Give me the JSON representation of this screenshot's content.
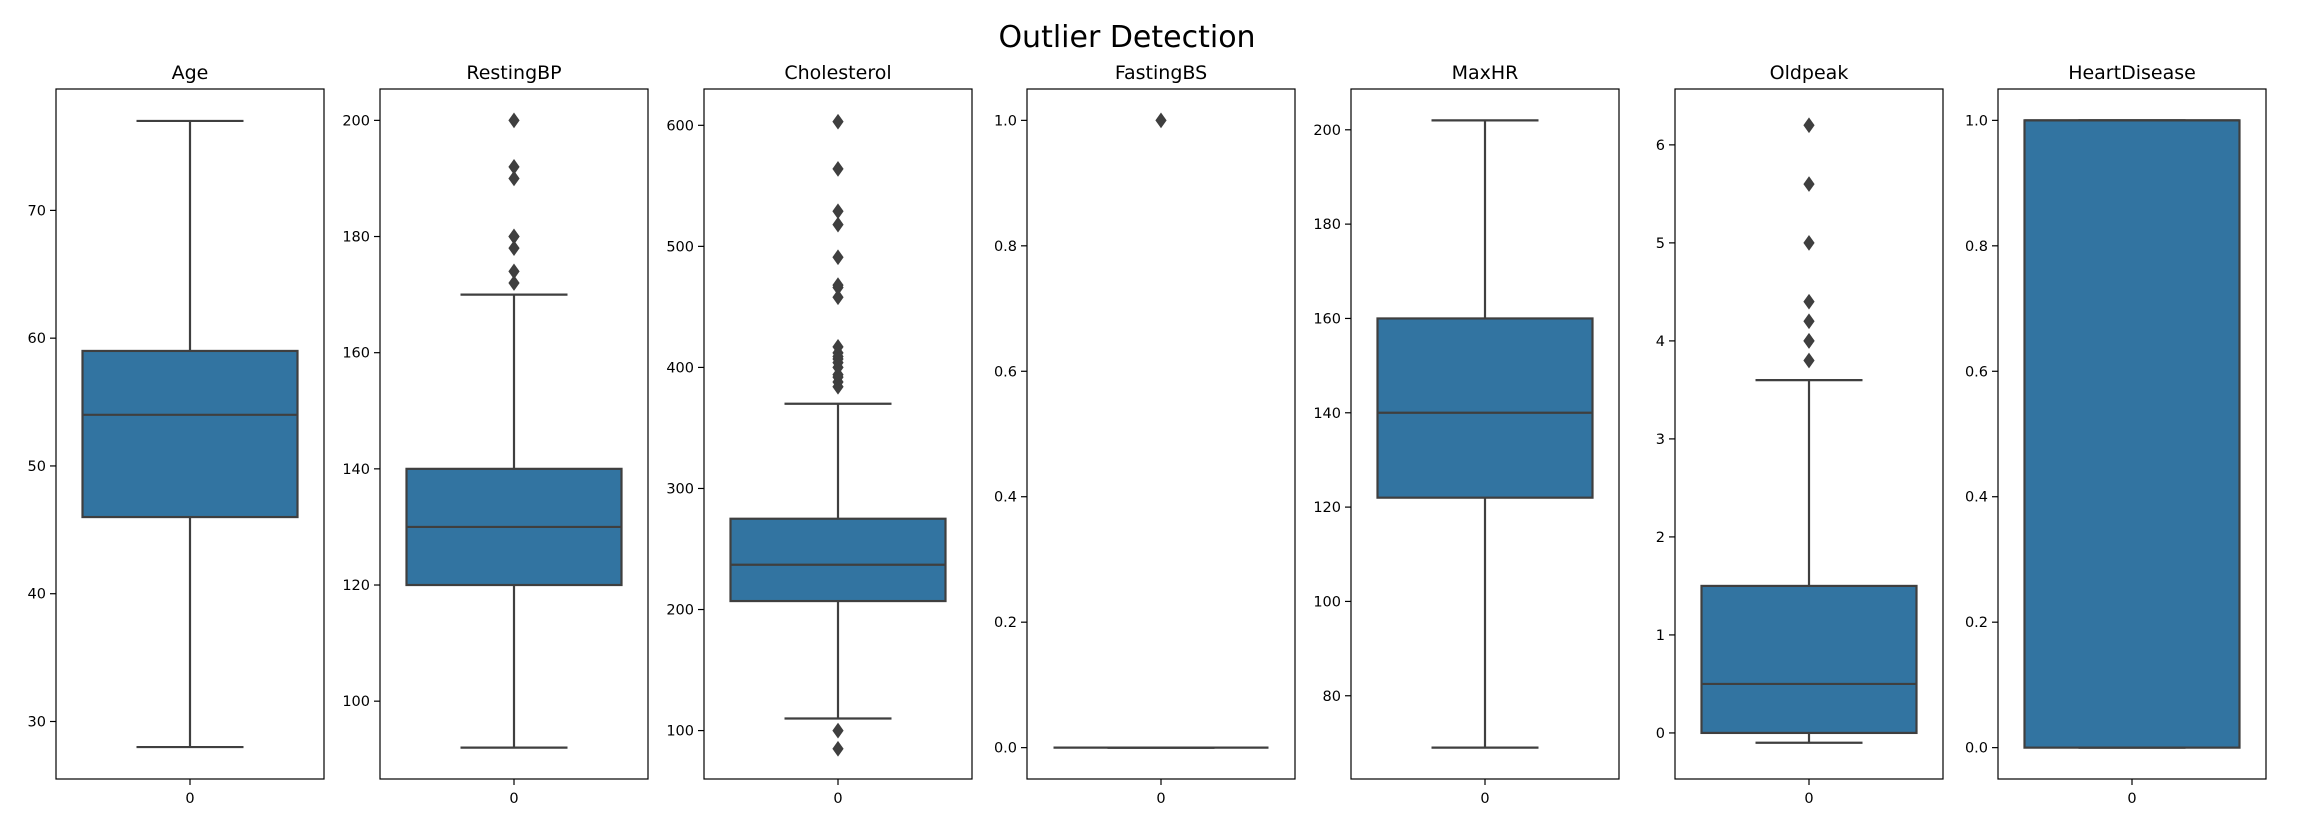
{
  "figure_title": "Outlier Detection",
  "colors": {
    "box": "#3274a1",
    "line": "#3f3f3f",
    "frame": "#000000"
  },
  "chart_data": [
    {
      "type": "box",
      "title": "Age",
      "categories": [
        "0"
      ],
      "ylim": [
        25.5,
        79.5
      ],
      "yticks": [
        30,
        40,
        50,
        60,
        70
      ],
      "box": {
        "whisker_low": 28,
        "q1": 46,
        "median": 54,
        "q3": 59,
        "whisker_high": 77
      },
      "outliers": []
    },
    {
      "type": "box",
      "title": "RestingBP",
      "categories": [
        "0"
      ],
      "ylim": [
        86.6,
        205.4
      ],
      "yticks": [
        100,
        120,
        140,
        160,
        180,
        200
      ],
      "box": {
        "whisker_low": 92,
        "q1": 120,
        "median": 130,
        "q3": 140,
        "whisker_high": 170
      },
      "outliers": [
        172,
        174,
        178,
        180,
        180,
        190,
        192,
        200
      ]
    },
    {
      "type": "box",
      "title": "Cholesterol",
      "categories": [
        "0"
      ],
      "ylim": [
        60,
        630
      ],
      "yticks": [
        100,
        200,
        300,
        400,
        500,
        600
      ],
      "box": {
        "whisker_low": 110,
        "q1": 207,
        "median": 237,
        "q3": 275,
        "whisker_high": 370
      },
      "outliers": [
        85,
        100,
        384,
        388,
        392,
        394,
        400,
        404,
        407,
        409,
        412,
        417,
        458,
        466,
        468,
        491,
        518,
        529,
        564,
        603
      ]
    },
    {
      "type": "box",
      "title": "FastingBS",
      "categories": [
        "0"
      ],
      "ylim": [
        -0.05,
        1.05
      ],
      "yticks": [
        "0.0",
        "0.2",
        "0.4",
        "0.6",
        "0.8",
        "1.0"
      ],
      "box": {
        "whisker_low": 0,
        "q1": 0,
        "median": 0,
        "q3": 0,
        "whisker_high": 0
      },
      "outliers": [
        1.0
      ]
    },
    {
      "type": "box",
      "title": "MaxHR",
      "categories": [
        "0"
      ],
      "ylim": [
        62.35,
        208.65
      ],
      "yticks": [
        80,
        100,
        120,
        140,
        160,
        180,
        200
      ],
      "box": {
        "whisker_low": 69,
        "q1": 122,
        "median": 140,
        "q3": 160,
        "whisker_high": 202
      },
      "outliers": []
    },
    {
      "type": "box",
      "title": "Oldpeak",
      "categories": [
        "0"
      ],
      "ylim": [
        -0.47,
        6.57
      ],
      "yticks": [
        0,
        1,
        2,
        3,
        4,
        5,
        6
      ],
      "box": {
        "whisker_low": -0.1,
        "q1": 0,
        "median": 0.5,
        "q3": 1.5,
        "whisker_high": 3.6
      },
      "outliers": [
        3.8,
        4.0,
        4.0,
        4.2,
        4.4,
        5.0,
        5.6,
        6.2
      ]
    },
    {
      "type": "box",
      "title": "HeartDisease",
      "categories": [
        "0"
      ],
      "ylim": [
        -0.05,
        1.05
      ],
      "yticks": [
        "0.0",
        "0.2",
        "0.4",
        "0.6",
        "0.8",
        "1.0"
      ],
      "box": {
        "whisker_low": 0,
        "q1": 0,
        "median": 1,
        "q3": 1,
        "whisker_high": 1
      },
      "outliers": []
    }
  ]
}
